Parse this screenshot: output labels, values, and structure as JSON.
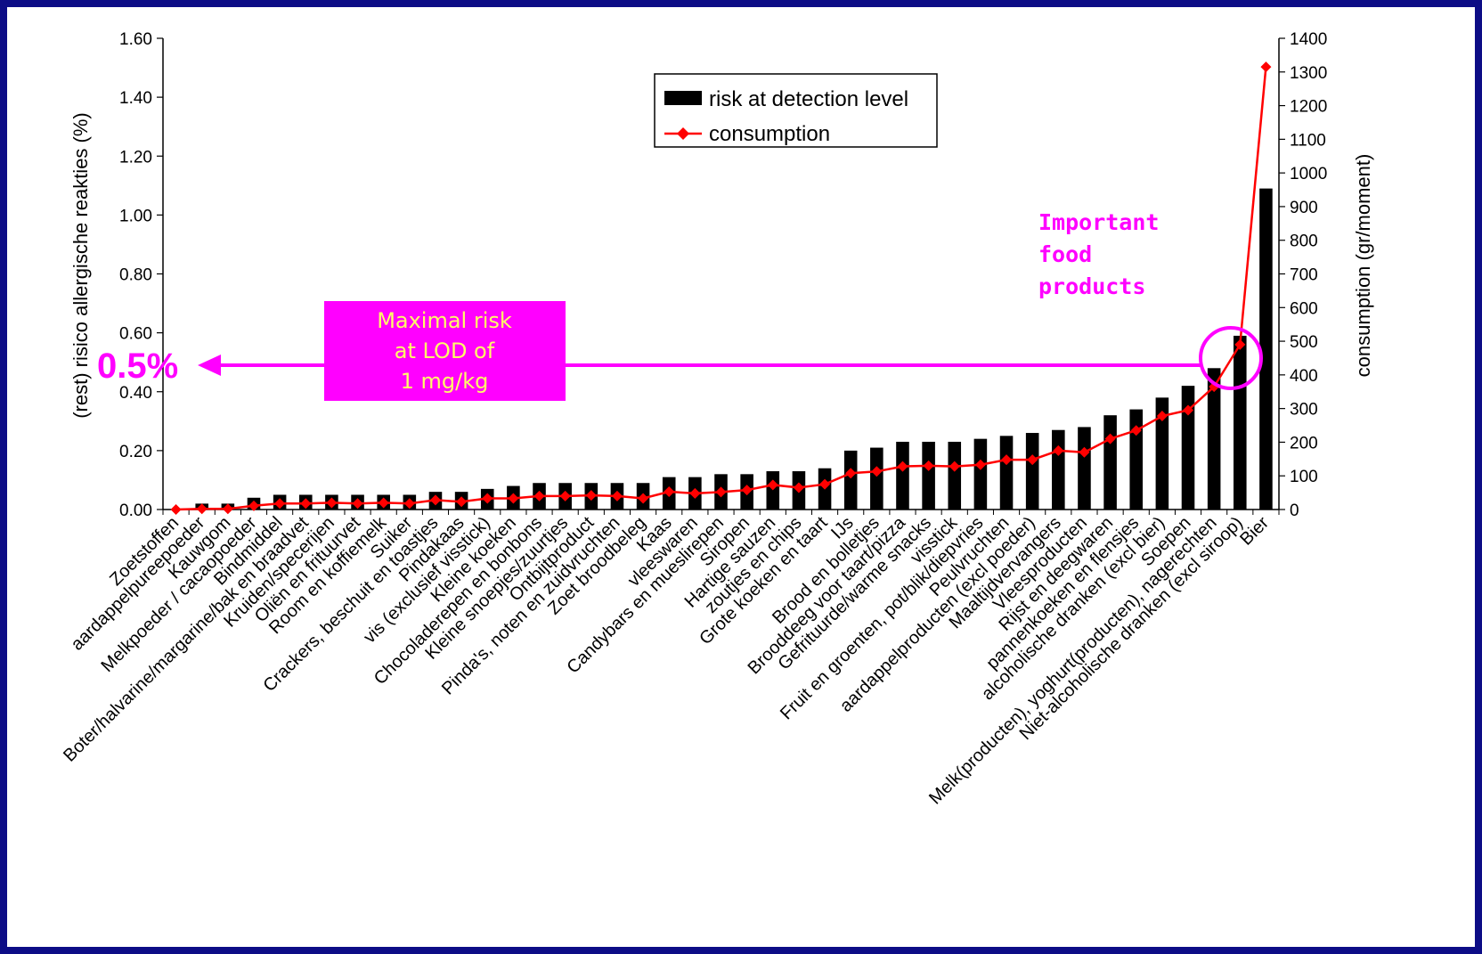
{
  "colors": {
    "background_frame": "#0d0d86",
    "bar": "#000000",
    "consumption_line": "#ff0000",
    "highlight": "#ff00ff",
    "box_text": "#ffff66"
  },
  "annotations": {
    "big_value": "0.5%",
    "box_lines": [
      "Maximal risk",
      "at LOD of",
      "1 mg/kg"
    ],
    "important_lines": [
      "Important",
      "food",
      "products"
    ]
  },
  "chart_data": {
    "type": "bar",
    "ylabel": "(rest) risico allergische reakties (%)",
    "y2label": "consumption (gr/moment)",
    "ylim": [
      0,
      1.6
    ],
    "y2lim": [
      0,
      1400
    ],
    "yticks": [
      "0.00",
      "0.20",
      "0.40",
      "0.60",
      "0.80",
      "1.00",
      "1.20",
      "1.40",
      "1.60"
    ],
    "y2ticks": [
      "0",
      "100",
      "200",
      "300",
      "400",
      "500",
      "600",
      "700",
      "800",
      "900",
      "1000",
      "1100",
      "1200",
      "1300",
      "1400"
    ],
    "legend_position": "top-center",
    "categories": [
      "Zoetstoffen",
      "aardappelpureepoeder",
      "Kauwgom",
      "Melkpoeder / cacaopoeder",
      "Bindmiddel",
      "Boter/halvarine/margarine/bak en braadvet",
      "Kruiden/specerijen",
      "Oliën en frituurvet",
      "Room en koffiemelk",
      "Suiker",
      "Crackers, beschuit en toastjes",
      "Pindakaas",
      "vis (exclusief visstick)",
      "Kleine koeken",
      "Chocoladerepen en bonbons",
      "Kleine snoepjes/zuurtjes",
      "Ontbijtproduct",
      "Pinda's, noten en zuidvruchten",
      "Zoet broodbeleg",
      "Kaas",
      "vleeswaren",
      "Candybars en mueslirepen",
      "Siropen",
      "Hartige sauzen",
      "zoutjes en chips",
      "Grote koeken en taart",
      "IJs",
      "Brood en bolletjes",
      "Brooddeeg voor taart/pizza",
      "Gefrituurde/warme snacks",
      "visstick",
      "Fruit en groenten, pot/blik/diepvries",
      "Peulvruchten",
      "aardappelproducten (excl poeder)",
      "Maaltijdvervangers",
      "Vleesproducten",
      "Rijst en deegwaren",
      "pannenkoeken en flensjes",
      "alcoholische dranken (excl bier)",
      "Soepen",
      "Melk(producten), yoghurt(producten), nagerechten",
      "Niet-alcoholische dranken (excl siroop)",
      "Bier"
    ],
    "series": [
      {
        "name": "risk at detection level",
        "type": "bar",
        "axis": "left",
        "values": [
          0.0,
          0.02,
          0.02,
          0.04,
          0.05,
          0.05,
          0.05,
          0.05,
          0.05,
          0.05,
          0.06,
          0.06,
          0.07,
          0.08,
          0.09,
          0.09,
          0.09,
          0.09,
          0.09,
          0.11,
          0.11,
          0.12,
          0.12,
          0.13,
          0.13,
          0.14,
          0.2,
          0.21,
          0.23,
          0.23,
          0.23,
          0.24,
          0.25,
          0.26,
          0.27,
          0.28,
          0.32,
          0.34,
          0.38,
          0.42,
          0.48,
          0.59,
          1.09
        ]
      },
      {
        "name": "consumption",
        "type": "line",
        "axis": "right",
        "values": [
          0,
          2,
          2,
          11,
          18,
          18,
          20,
          18,
          20,
          18,
          28,
          23,
          33,
          33,
          40,
          40,
          42,
          40,
          33,
          53,
          48,
          52,
          58,
          73,
          65,
          75,
          108,
          113,
          128,
          130,
          128,
          133,
          148,
          148,
          175,
          170,
          210,
          235,
          278,
          295,
          365,
          490,
          1315
        ]
      }
    ]
  }
}
